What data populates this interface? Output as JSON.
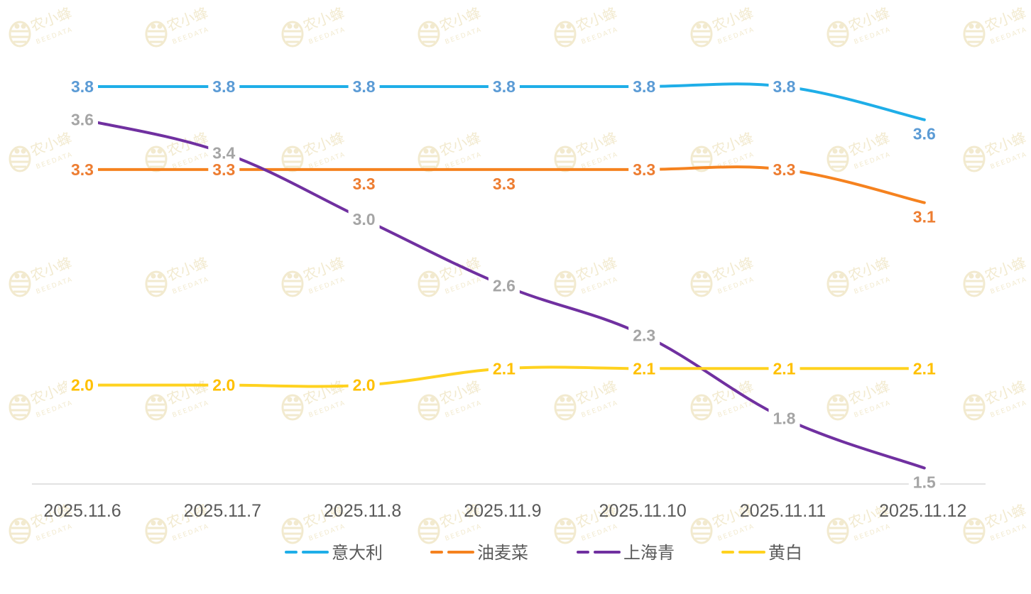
{
  "watermark": {
    "brand_cn": "农小蜂",
    "brand_en": "BEEDATA",
    "color": "#E8D9A8"
  },
  "chart_data": {
    "type": "line",
    "categories": [
      "2025.11.6",
      "2025.11.7",
      "2025.11.8",
      "2025.11.9",
      "2025.11.10",
      "2025.11.11",
      "2025.11.12"
    ],
    "series": [
      {
        "name": "意大利",
        "color": "#1FAEE8",
        "label_color": "#5B9BD5",
        "values": [
          3.8,
          3.8,
          3.8,
          3.8,
          3.8,
          3.8,
          3.6
        ],
        "labels": [
          "3.8",
          "3.8",
          "3.8",
          "3.8",
          "3.8",
          "3.8",
          "3.6"
        ],
        "label_placement": [
          "left",
          "center",
          "center",
          "center",
          "center",
          "center",
          "below"
        ]
      },
      {
        "name": "油麦菜",
        "color": "#F5821F",
        "label_color": "#ED7D31",
        "values": [
          3.3,
          3.3,
          3.3,
          3.3,
          3.3,
          3.3,
          3.1
        ],
        "labels": [
          "3.3",
          "3.3",
          "3.3",
          "3.3",
          "3.3",
          "3.3",
          "3.1"
        ],
        "label_placement": [
          "left",
          "center",
          "below",
          "below",
          "center",
          "center",
          "below"
        ]
      },
      {
        "name": "上海青",
        "color": "#7030A0",
        "label_color": "#A5A5A5",
        "values": [
          3.6,
          3.4,
          3.0,
          2.6,
          2.3,
          1.8,
          1.5
        ],
        "labels": [
          "3.6",
          "3.4",
          "3.0",
          "2.6",
          "2.3",
          "1.8",
          "1.5"
        ],
        "label_placement": [
          "left",
          "center",
          "center",
          "center",
          "center",
          "center",
          "below"
        ]
      },
      {
        "name": "黄白",
        "color": "#FFD21F",
        "label_color": "#FFC000",
        "values": [
          2.0,
          2.0,
          2.0,
          2.1,
          2.1,
          2.1,
          2.1
        ],
        "labels": [
          "2.0",
          "2.0",
          "2.0",
          "2.1",
          "2.1",
          "2.1",
          "2.1"
        ],
        "label_placement": [
          "left",
          "center",
          "center",
          "center",
          "center",
          "center",
          "center"
        ]
      }
    ],
    "x_tick_color": "#595959",
    "legend_text_color": "#595959",
    "axis_color": "#D9D9D9",
    "legend_position": "bottom",
    "grid": false,
    "ylim": [
      1.0,
      4.0
    ]
  }
}
